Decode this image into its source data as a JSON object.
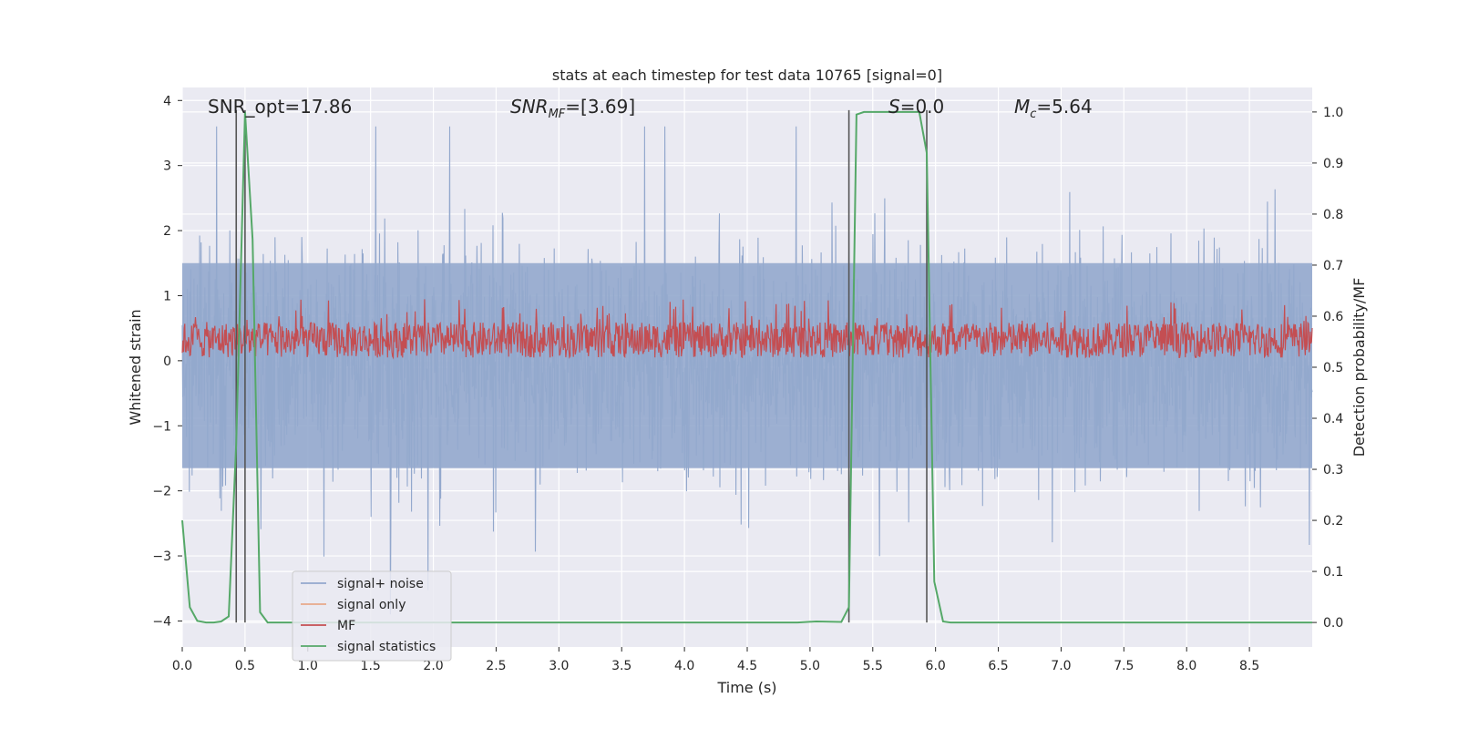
{
  "chart_data": {
    "type": "line",
    "title": "stats at each timestep for test data 10765 [signal=0]",
    "xlabel": "Time (s)",
    "ylabel_left": "Whitened strain",
    "ylabel_right": "Detection probability/MF",
    "xlim": [
      0.0,
      9.0
    ],
    "ylim_left": [
      -4.4,
      4.2
    ],
    "ylim_right": [
      -0.048,
      1.048
    ],
    "xticks": [
      "0.0",
      "0.5",
      "1.0",
      "1.5",
      "2.0",
      "2.5",
      "3.0",
      "3.5",
      "4.0",
      "4.5",
      "5.0",
      "5.5",
      "6.0",
      "6.5",
      "7.0",
      "7.5",
      "8.0",
      "8.5"
    ],
    "yticks_left": [
      "−4",
      "−3",
      "−2",
      "−1",
      "0",
      "1",
      "2",
      "3",
      "4"
    ],
    "yticks_right": [
      "0.0",
      "0.1",
      "0.2",
      "0.3",
      "0.4",
      "0.5",
      "0.6",
      "0.7",
      "0.8",
      "0.9",
      "1.0"
    ],
    "grid": true,
    "legend_position": "lower-left",
    "annotations": {
      "snr_opt": "SNR_opt=17.86",
      "snr_mf": "=[3.69]",
      "s": "=0.0",
      "mc": "=5.64"
    },
    "series": [
      {
        "name": "signal+ noise",
        "color": "#93a8cd",
        "axis": "left",
        "description_range": [
          -3.9,
          3.6
        ]
      },
      {
        "name": "signal only",
        "color": "#e8a98a",
        "axis": "left",
        "values": []
      },
      {
        "name": "MF",
        "color": "#c44e52",
        "axis": "left",
        "description_range": [
          0.05,
          0.95
        ]
      },
      {
        "name": "signal statistics",
        "color": "#55a868",
        "axis": "right",
        "x": [
          0.0,
          0.06,
          0.12,
          0.19,
          0.25,
          0.31,
          0.37,
          0.43,
          0.5,
          0.56,
          0.62,
          0.68,
          0.75,
          1.0,
          2.0,
          3.0,
          4.0,
          4.9,
          5.05,
          5.25,
          5.31,
          5.37,
          5.43,
          5.5,
          5.6,
          5.8,
          5.87,
          5.93,
          5.99,
          6.06,
          6.12,
          7.0,
          8.0,
          9.0
        ],
        "y": [
          0.2,
          0.03,
          0.003,
          0.0,
          0.0,
          0.002,
          0.012,
          0.35,
          1.0,
          0.75,
          0.02,
          0.0,
          0.0,
          0.0,
          0.0,
          0.0,
          0.0,
          0.0,
          0.002,
          0.001,
          0.03,
          0.995,
          1.0,
          1.0,
          1.0,
          1.0,
          1.0,
          0.92,
          0.08,
          0.002,
          0.0,
          0.0,
          0.0,
          0.0
        ]
      }
    ],
    "vertical_markers_x": [
      0.43,
      0.5,
      5.31,
      5.93
    ]
  }
}
